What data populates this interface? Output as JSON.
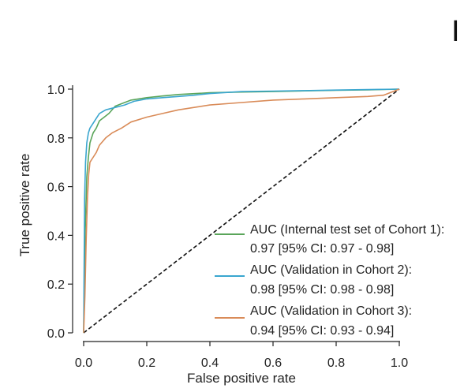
{
  "corner_text": "I",
  "chart_data": {
    "type": "line",
    "xlabel": "False positive rate",
    "ylabel": "True positive rate",
    "xlim": [
      0.0,
      1.0
    ],
    "ylim": [
      0.0,
      1.0
    ],
    "xticks": [
      "0.0",
      "0.2",
      "0.4",
      "0.6",
      "0.8",
      "1.0"
    ],
    "yticks": [
      "0.0",
      "0.2",
      "0.4",
      "0.6",
      "0.8",
      "1.0"
    ],
    "grid": false,
    "legend_position": "bottom-right",
    "series": [
      {
        "legend_line1": "AUC (Internal test set of Cohort 1):",
        "legend_line2": "0.97 [95% CI: 0.97 - 0.98]",
        "color": "#5aa55a",
        "x": [
          0.0,
          0.005,
          0.01,
          0.015,
          0.02,
          0.03,
          0.04,
          0.05,
          0.06,
          0.08,
          0.1,
          0.12,
          0.15,
          0.2,
          0.25,
          0.3,
          0.4,
          0.5,
          0.6,
          0.7,
          0.8,
          0.9,
          1.0
        ],
        "y": [
          0.0,
          0.42,
          0.64,
          0.72,
          0.78,
          0.82,
          0.84,
          0.87,
          0.88,
          0.9,
          0.93,
          0.94,
          0.955,
          0.965,
          0.972,
          0.978,
          0.985,
          0.988,
          0.99,
          0.993,
          0.995,
          0.997,
          1.0
        ]
      },
      {
        "legend_line1": "AUC (Validation in Cohort 2):",
        "legend_line2": "0.98 [95% CI: 0.98 - 0.98]",
        "color": "#3aa6cf",
        "x": [
          0.0,
          0.003,
          0.006,
          0.01,
          0.015,
          0.02,
          0.03,
          0.04,
          0.05,
          0.07,
          0.1,
          0.13,
          0.16,
          0.2,
          0.25,
          0.3,
          0.35,
          0.4,
          0.5,
          0.6,
          0.7,
          0.8,
          0.9,
          1.0
        ],
        "y": [
          0.0,
          0.55,
          0.7,
          0.78,
          0.82,
          0.84,
          0.86,
          0.88,
          0.9,
          0.915,
          0.925,
          0.935,
          0.95,
          0.96,
          0.965,
          0.97,
          0.975,
          0.982,
          0.99,
          0.992,
          0.994,
          0.996,
          0.998,
          1.0
        ]
      },
      {
        "legend_line1": "AUC (Validation in Cohort 3):",
        "legend_line2": "0.94 [95% CI: 0.93 - 0.94]",
        "color": "#d98b58",
        "x": [
          0.0,
          0.004,
          0.008,
          0.012,
          0.016,
          0.02,
          0.03,
          0.04,
          0.05,
          0.07,
          0.09,
          0.12,
          0.15,
          0.2,
          0.25,
          0.3,
          0.35,
          0.4,
          0.5,
          0.6,
          0.7,
          0.8,
          0.9,
          0.95,
          1.0
        ],
        "y": [
          0.0,
          0.15,
          0.38,
          0.55,
          0.65,
          0.7,
          0.72,
          0.74,
          0.77,
          0.8,
          0.82,
          0.84,
          0.865,
          0.885,
          0.9,
          0.915,
          0.925,
          0.935,
          0.945,
          0.955,
          0.96,
          0.965,
          0.97,
          0.975,
          1.0
        ]
      }
    ],
    "reference_line": {
      "x": [
        0.0,
        1.0
      ],
      "y": [
        0.0,
        1.0
      ],
      "style": "dashed",
      "color": "#111111"
    }
  }
}
